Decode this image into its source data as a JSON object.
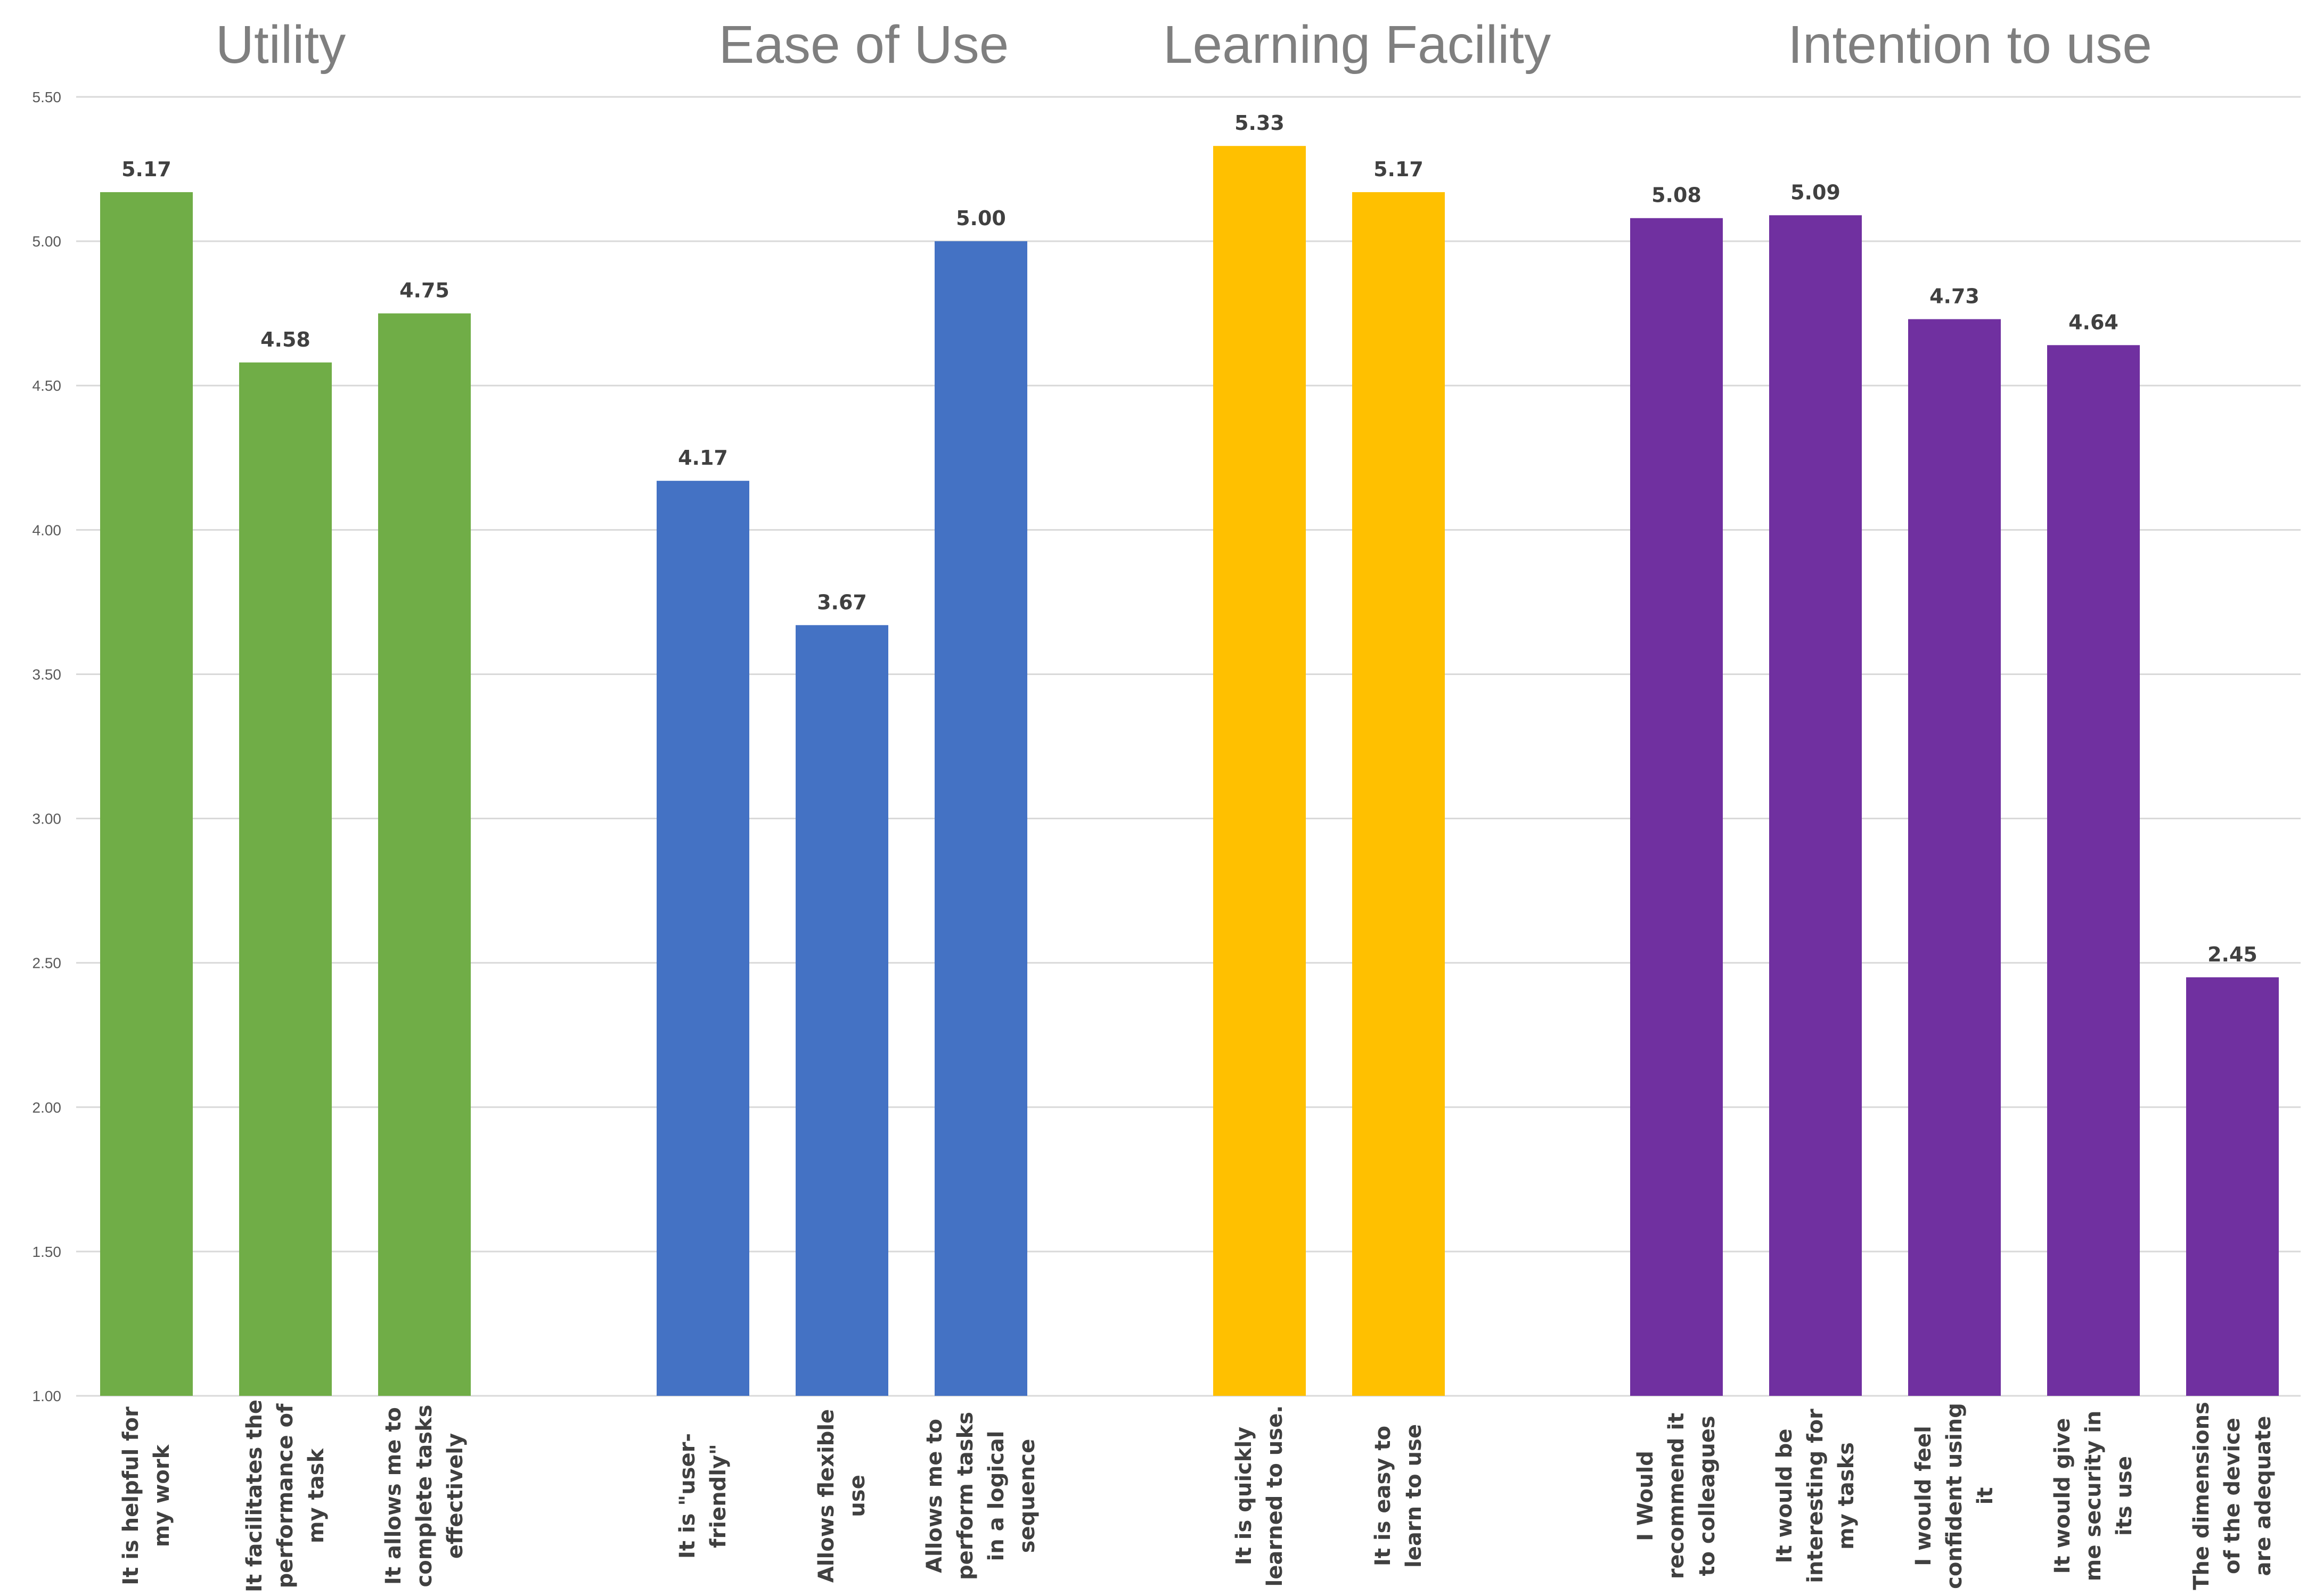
{
  "chart_data": {
    "type": "bar",
    "title": "",
    "xlabel": "",
    "ylabel": "",
    "ylim": [
      1.0,
      5.5
    ],
    "yticks": [
      "1.00",
      "1.50",
      "2.00",
      "2.50",
      "3.00",
      "3.50",
      "4.00",
      "4.50",
      "5.00",
      "5.50"
    ],
    "grid": true,
    "legend": "none",
    "groups": [
      {
        "name": "Utility",
        "color": "#70ad47",
        "bars": [
          {
            "category": [
              "It is helpful for",
              "my work"
            ],
            "value": 5.17,
            "label": "5.17"
          },
          {
            "category": [
              "It facilitates the",
              "performance of",
              "my task"
            ],
            "value": 4.58,
            "label": "4.58"
          },
          {
            "category": [
              "It allows me to",
              "complete tasks",
              "effectively"
            ],
            "value": 4.75,
            "label": "4.75"
          }
        ]
      },
      {
        "name": "Ease of Use",
        "color": "#4472c4",
        "bars": [
          {
            "category": [
              "It is \"user-",
              "friendly\""
            ],
            "value": 4.17,
            "label": "4.17"
          },
          {
            "category": [
              "Allows flexible",
              "use"
            ],
            "value": 3.67,
            "label": "3.67"
          },
          {
            "category": [
              "Allows me to",
              "perform tasks",
              "in a logical",
              "sequence"
            ],
            "value": 5.0,
            "label": "5.00"
          }
        ]
      },
      {
        "name": "Learning Facility",
        "color": "#ffc000",
        "bars": [
          {
            "category": [
              "It is quickly",
              "learned to use."
            ],
            "value": 5.33,
            "label": "5.33"
          },
          {
            "category": [
              "It is easy to",
              "learn to use"
            ],
            "value": 5.17,
            "label": "5.17"
          }
        ]
      },
      {
        "name": "Intention to use",
        "color": "#7030a0",
        "bars": [
          {
            "category": [
              "I Would",
              "recommend it",
              "to colleagues"
            ],
            "value": 5.08,
            "label": "5.08"
          },
          {
            "category": [
              "It would be",
              "interesting for",
              "my tasks"
            ],
            "value": 5.09,
            "label": "5.09"
          },
          {
            "category": [
              "I would feel",
              "confident using",
              "it"
            ],
            "value": 4.73,
            "label": "4.73"
          },
          {
            "category": [
              "It would give",
              "me security in",
              "its use"
            ],
            "value": 4.64,
            "label": "4.64"
          },
          {
            "category": [
              "The dimensions",
              "of the device",
              "are adequate"
            ],
            "value": 2.45,
            "label": "2.45"
          }
        ]
      }
    ]
  }
}
